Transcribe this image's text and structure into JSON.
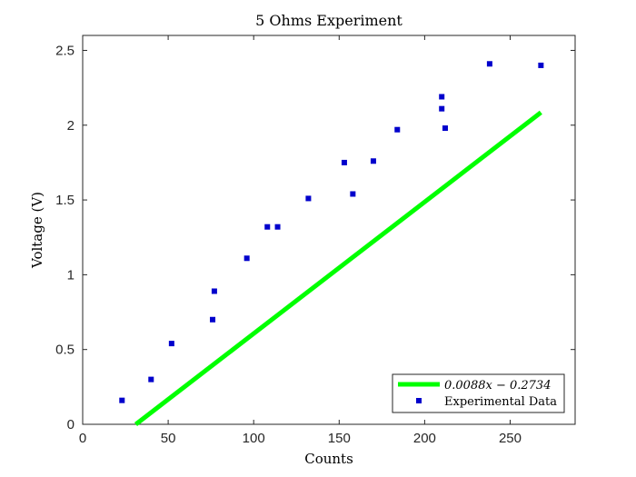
{
  "chart_data": {
    "type": "scatter",
    "title": "5 Ohms Experiment",
    "xlabel": "Counts",
    "ylabel": "Voltage (V)",
    "xlim": [
      0,
      288
    ],
    "ylim": [
      0,
      2.6
    ],
    "xticks": [
      0,
      50,
      100,
      150,
      200,
      250
    ],
    "yticks": [
      0,
      0.5,
      1,
      1.5,
      2,
      2.5
    ],
    "xtick_labels": [
      "0",
      "50",
      "100",
      "150",
      "200",
      "250"
    ],
    "ytick_labels": [
      "0",
      "0.5",
      "1",
      "1.5",
      "2",
      "2.5"
    ],
    "grid": false,
    "legend_position": "bottom-right",
    "fit_line": {
      "name": "0.0088x − 0.2734",
      "slope": 0.0088,
      "intercept": -0.2734,
      "x_range": [
        31.07,
        268
      ],
      "color": "#00ff00"
    },
    "series": [
      {
        "name": "Experimental Data",
        "color": "#0000cc",
        "x": [
          23,
          40,
          52,
          76,
          77,
          96,
          108,
          114,
          132,
          153,
          158,
          170,
          184,
          210,
          210,
          212,
          238,
          268
        ],
        "y": [
          0.16,
          0.3,
          0.54,
          0.7,
          0.89,
          1.11,
          1.32,
          1.32,
          1.51,
          1.75,
          1.54,
          1.76,
          1.97,
          2.11,
          2.19,
          1.98,
          2.41,
          2.4
        ]
      }
    ]
  }
}
